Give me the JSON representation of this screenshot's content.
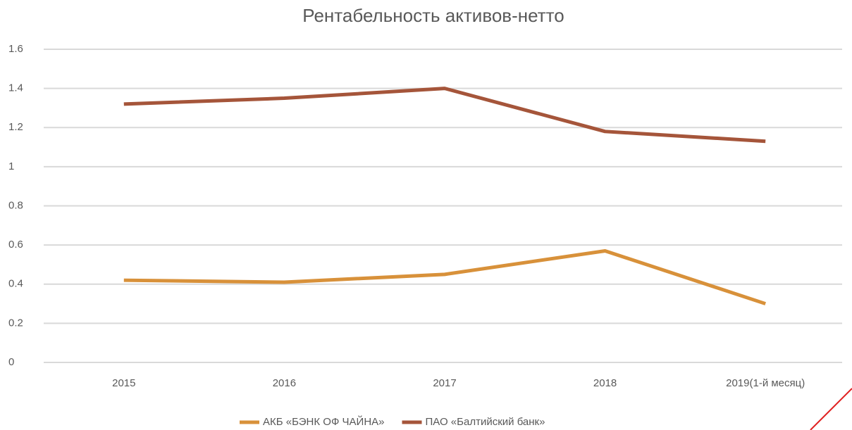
{
  "chart_data": {
    "type": "line",
    "title": "Рентабельность активов-нетто",
    "categories": [
      "2015",
      "2016",
      "2017",
      "2018",
      "2019(1-й месяц)"
    ],
    "series": [
      {
        "name": "АКБ «БЭНК ОФ ЧАЙНА»",
        "color": "#d8913a",
        "values": [
          0.42,
          0.41,
          0.45,
          0.57,
          0.3
        ]
      },
      {
        "name": "ПАО «Балтийский банк»",
        "color": "#a5553a",
        "values": [
          1.32,
          1.35,
          1.4,
          1.18,
          1.13
        ]
      }
    ],
    "ylim": [
      0,
      1.6
    ],
    "yticks": [
      0,
      0.2,
      0.4,
      0.6,
      0.8,
      1,
      1.2,
      1.4,
      1.6
    ],
    "grid": true,
    "legend": "bottom"
  }
}
